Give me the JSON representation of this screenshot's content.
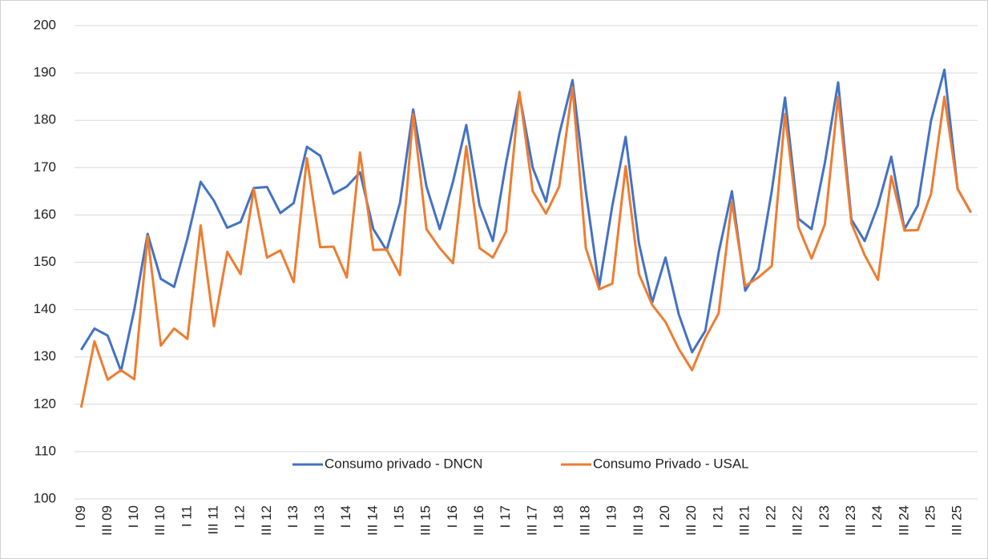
{
  "chart_data": {
    "type": "line",
    "categories": [
      "I 09",
      null,
      "III 09",
      null,
      "I 10",
      null,
      "III 10",
      null,
      "I 11",
      null,
      "III 11",
      null,
      "I 12",
      null,
      "III 12",
      null,
      "I 13",
      null,
      "III 13",
      null,
      "I 14",
      null,
      "III 14",
      null,
      "I 15",
      null,
      "III 15",
      null,
      "I 16",
      null,
      "III 16",
      null,
      "I 17",
      null,
      "III 17",
      null,
      "I 18",
      null,
      "III 18",
      null,
      "I 19",
      null,
      "III 19",
      null,
      "I 20",
      null,
      "III 20",
      null,
      "I 21",
      null,
      "III 21",
      null,
      "I 22",
      null,
      "III 22",
      null,
      "I 23",
      null,
      "III 23",
      null,
      "I 24",
      null,
      "III 24",
      null,
      "I 25",
      null,
      "III 25",
      null
    ],
    "series": [
      {
        "name": "Consumo privado - DNCN",
        "color": "#4472c4",
        "values": [
          131.5,
          136,
          134.5,
          127,
          140,
          156,
          146.5,
          144.8,
          155,
          167,
          163,
          157.3,
          158.5,
          165.7,
          165.9,
          160.4,
          162.5,
          174.4,
          172.5,
          164.5,
          166,
          169,
          157,
          152.5,
          162.5,
          182.3,
          166,
          157,
          167,
          179,
          162,
          154.5,
          171,
          185.5,
          170,
          162.8,
          177,
          188.5,
          165,
          144.8,
          162,
          176.5,
          154,
          141.5,
          151,
          139,
          131,
          135.5,
          152,
          165,
          144,
          148.5,
          165,
          184.8,
          159.2,
          157,
          171,
          188,
          159,
          154.5,
          162,
          172.3,
          157,
          162,
          180,
          190.7,
          165.5,
          160.5
        ]
      },
      {
        "name": "Consumo Privado - USAL",
        "color": "#ed7d31",
        "values": [
          119.3,
          133.3,
          125.2,
          127.2,
          125.3,
          155.5,
          132.4,
          136,
          133.8,
          157.8,
          136.5,
          152.2,
          147.5,
          165.5,
          151,
          152.5,
          145.8,
          172,
          153.2,
          153.3,
          146.8,
          173.2,
          152.6,
          152.7,
          147.3,
          181.3,
          157,
          153,
          149.8,
          174.5,
          153,
          151,
          156.5,
          186,
          165,
          160.3,
          166,
          187,
          153,
          144.3,
          145.5,
          170.3,
          147.5,
          141,
          137.4,
          131.7,
          127.2,
          134,
          139.2,
          162.8,
          145,
          146.8,
          149.2,
          181.3,
          157.5,
          150.8,
          158,
          185,
          158.2,
          151.5,
          146.3,
          168.2,
          156.7,
          156.8,
          164.5,
          185,
          165.5,
          160.5
        ]
      }
    ],
    "ylim": [
      100,
      200
    ],
    "yticks": [
      100,
      110,
      120,
      130,
      140,
      150,
      160,
      170,
      180,
      190,
      200
    ],
    "grid": true,
    "legend": "bottom"
  }
}
